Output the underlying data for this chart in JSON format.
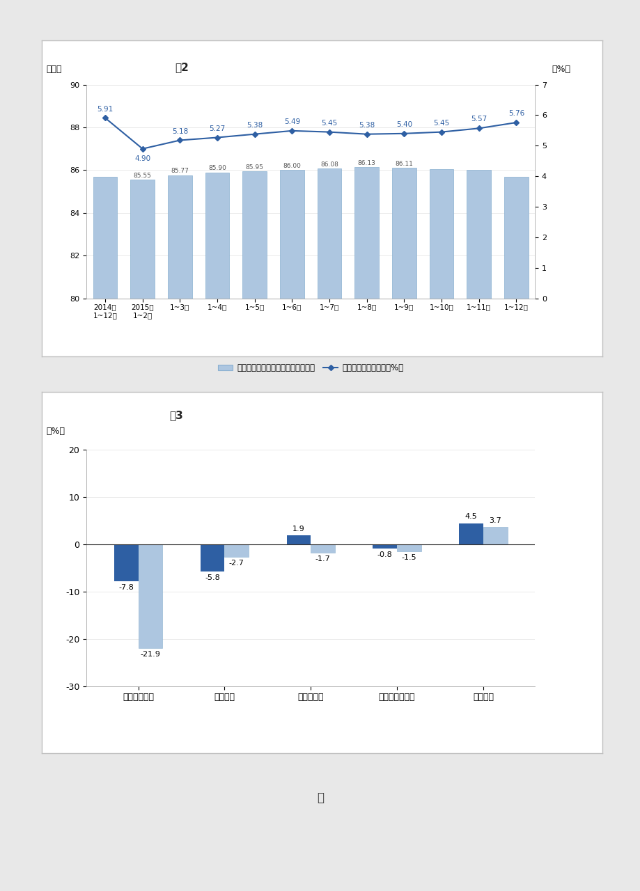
{
  "chart1": {
    "title": "图2",
    "categories": [
      "2014年\n1~12月",
      "2015年\n1~2月",
      "1~3月",
      "1~4月",
      "1~5月",
      "1~6月",
      "1~7月",
      "1~8月",
      "1~9月",
      "1~10月",
      "1~11月",
      "1~12月"
    ],
    "bar_values": [
      85.68,
      85.55,
      85.77,
      85.9,
      85.95,
      86.0,
      86.08,
      86.13,
      86.11,
      86.05,
      86.02,
      85.68
    ],
    "bar_labels": [
      "",
      "85.55",
      "85.77",
      "85.90",
      "85.95",
      "86.00",
      "86.08",
      "86.13",
      "86.11",
      "",
      "",
      ""
    ],
    "line_values": [
      5.91,
      4.9,
      5.18,
      5.27,
      5.38,
      5.49,
      5.45,
      5.38,
      5.4,
      5.45,
      5.57,
      5.76
    ],
    "line_labels": [
      "5.91",
      "4.90",
      "5.18",
      "5.27",
      "5.38",
      "5.49",
      "5.45",
      "5.38",
      "5.40",
      "5.45",
      "5.57",
      "5.76"
    ],
    "bar_color": "#adc6e0",
    "line_color": "#2e5fa3",
    "bar_ylim": [
      80,
      90
    ],
    "bar_yticks": [
      80,
      82,
      84,
      86,
      88,
      90
    ],
    "line_ylim": [
      0,
      7
    ],
    "line_yticks": [
      0,
      1,
      2,
      3,
      4,
      5,
      6,
      7
    ],
    "left_ylabel": "（元）",
    "right_ylabel": "（%）",
    "legend_bar": "每百元主营业务收入中的成本（元）",
    "legend_line": "主营业务收入利润率（%）"
  },
  "chart2": {
    "title": "图3",
    "categories": [
      "国有控股企业",
      "集体企业",
      "股份制企业",
      "外资及港澳台商",
      "私营企业"
    ],
    "series1_values": [
      -7.8,
      -5.8,
      1.9,
      -0.8,
      4.5
    ],
    "series2_values": [
      -21.9,
      -2.7,
      -1.7,
      -1.5,
      3.7
    ],
    "series1_labels": [
      "-7.8",
      "-5.8",
      "1.9",
      "-0.8",
      "4.5"
    ],
    "series2_labels": [
      "-21.9",
      "-2.7",
      "-1.7",
      "-1.5",
      "3.7"
    ],
    "series1_color": "#2e5fa3",
    "series2_color": "#adc6e0",
    "ylim": [
      -30,
      20
    ],
    "yticks": [
      -30,
      -20,
      -10,
      0,
      10,
      20
    ],
    "left_ylabel": "（%）"
  },
  "bottom_text": "表",
  "page_bg": "#e8e8e8",
  "box_bg": "#ffffff",
  "box_border": "#c0c0c0"
}
